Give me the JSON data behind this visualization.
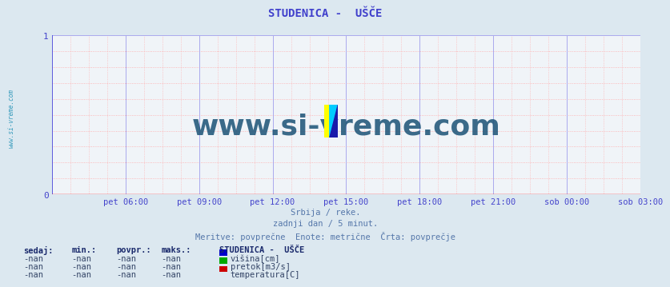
{
  "title": "STUDENICA -  UŠČE",
  "title_color": "#4040cc",
  "background_color": "#dce8f0",
  "plot_bg_color": "#f0f4f8",
  "watermark_text": "www.si-vreme.com",
  "watermark_color": "#1a5276",
  "watermark_alpha": 0.85,
  "watermark_fontsize": 26,
  "xlim": [
    0,
    288
  ],
  "ylim": [
    0,
    1
  ],
  "yticks": [
    0,
    1
  ],
  "xtick_labels": [
    "pet 06:00",
    "pet 09:00",
    "pet 12:00",
    "pet 15:00",
    "pet 18:00",
    "pet 21:00",
    "sob 00:00",
    "sob 03:00"
  ],
  "xtick_positions": [
    36,
    72,
    108,
    144,
    180,
    216,
    252,
    288
  ],
  "grid_blue_color": "#aaaaee",
  "grid_red_color": "#ffaaaa",
  "yaxis_color": "#4444dd",
  "xaxis_color": "#ff0000",
  "tick_color": "#4444cc",
  "subtitle_lines": [
    "Srbija / reke.",
    "zadnji dan / 5 minut.",
    "Meritve: povprečne  Enote: metrične  Črta: povprečje"
  ],
  "subtitle_color": "#5577aa",
  "legend_title": "STUDENICA -  UŠČE",
  "legend_items": [
    {
      "label": "višina[cm]",
      "color": "#0000cc"
    },
    {
      "label": "pretok[m3/s]",
      "color": "#00aa00"
    },
    {
      "label": "temperatura[C]",
      "color": "#cc0000"
    }
  ],
  "table_headers": [
    "sedaj:",
    "min.:",
    "povpr.:",
    "maks.:"
  ],
  "table_values": [
    [
      "-nan",
      "-nan",
      "-nan",
      "-nan"
    ],
    [
      "-nan",
      "-nan",
      "-nan",
      "-nan"
    ],
    [
      "-nan",
      "-nan",
      "-nan",
      "-nan"
    ]
  ],
  "left_label": "www.si-vreme.com",
  "left_label_color": "#3399bb",
  "logo_colors": [
    "#ffff00",
    "#00ccff",
    "#1a1aaa"
  ]
}
